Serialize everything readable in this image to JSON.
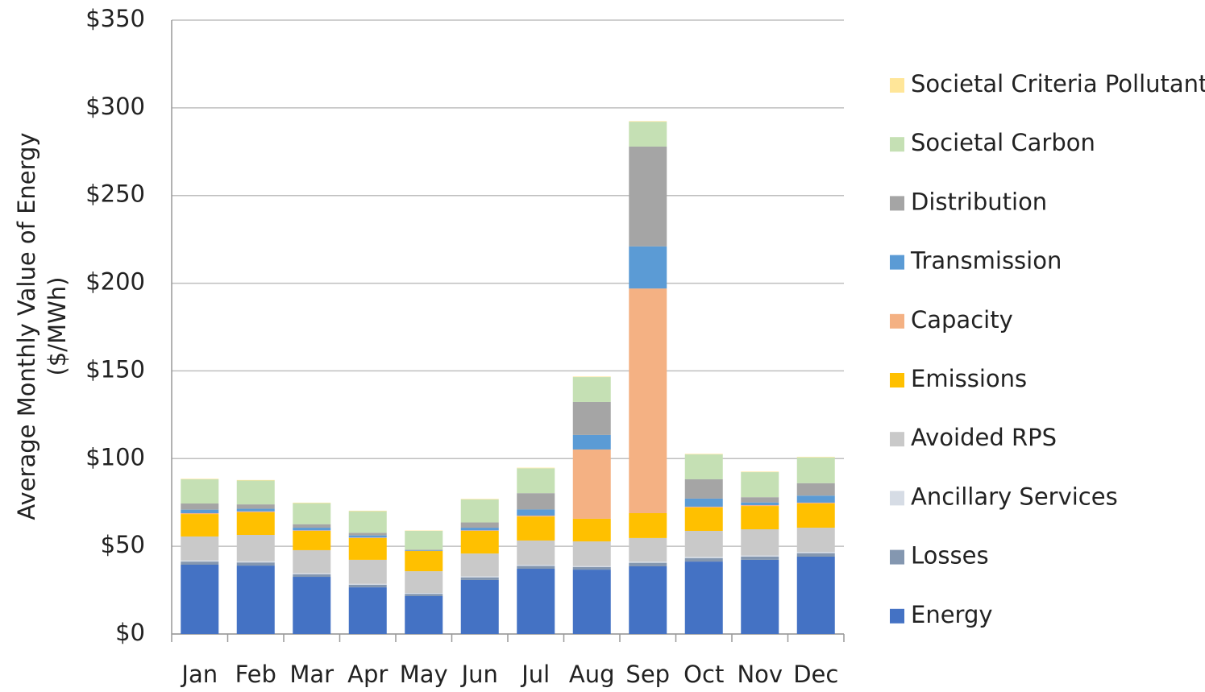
{
  "chart_data": {
    "type": "stacked_bar",
    "y_label": [
      "Average Monthly Value of Energy",
      "($/MWh)"
    ],
    "categories": [
      "Jan",
      "Feb",
      "Mar",
      "Apr",
      "May",
      "Jun",
      "Jul",
      "Aug",
      "Sep",
      "Oct",
      "Nov",
      "Dec"
    ],
    "series": [
      {
        "name": "Energy",
        "color": "#4472c4",
        "values": [
          39.5,
          39,
          32.6,
          26.6,
          21.6,
          30.8,
          37.2,
          36.7,
          38.6,
          41.3,
          42.3,
          44.1
        ]
      },
      {
        "name": "Losses",
        "color": "#8497b0",
        "values": [
          1.8,
          1.8,
          1.5,
          1.5,
          1.3,
          1.5,
          1.6,
          1.5,
          2,
          2,
          1.8,
          2
        ]
      },
      {
        "name": "Ancillary Services",
        "color": "#d6dce5",
        "values": [
          0.7,
          0.7,
          0.6,
          0.5,
          0.5,
          0.6,
          0.6,
          0.6,
          0.7,
          0.7,
          0.7,
          0.7
        ]
      },
      {
        "name": "Avoided RPS",
        "color": "#c9c9c9",
        "values": [
          13.6,
          15,
          13.1,
          13.7,
          12.4,
          13,
          13.9,
          14,
          13.4,
          14.8,
          14.9,
          13.8
        ]
      },
      {
        "name": "Emissions",
        "color": "#ffc000",
        "values": [
          12.8,
          12.9,
          11,
          12.4,
          11.5,
          12.9,
          13.7,
          12.9,
          14.2,
          13.3,
          13.3,
          13.8
        ]
      },
      {
        "name": "Capacity",
        "color": "#f4b183",
        "values": [
          0.5,
          0.5,
          0.3,
          0.3,
          0,
          0.3,
          0.5,
          39.5,
          128.1,
          0.5,
          0.5,
          0.5
        ]
      },
      {
        "name": "Transmission",
        "color": "#5b9bd5",
        "values": [
          2,
          1.5,
          1.5,
          1.2,
          0.3,
          1.5,
          3.5,
          8.3,
          24,
          4.6,
          1.5,
          4
        ]
      },
      {
        "name": "Distribution",
        "color": "#a5a5a5",
        "values": [
          3.5,
          2.5,
          2,
          1.5,
          0.5,
          3,
          9.3,
          18.8,
          56.9,
          11,
          3,
          7.1
        ]
      },
      {
        "name": "Societal Carbon",
        "color": "#c5e0b4",
        "values": [
          13.8,
          13.6,
          12,
          12.3,
          10.7,
          13.1,
          14.2,
          14.2,
          14.2,
          14.2,
          14.3,
          14.7
        ]
      },
      {
        "name": "Societal Criteria Pollutants",
        "color": "#ffe699",
        "values": [
          0.3,
          0.3,
          0.3,
          0.3,
          0.2,
          0.3,
          0.3,
          0.3,
          0.3,
          0.3,
          0.3,
          0.3
        ]
      }
    ],
    "ylim": [
      0,
      350
    ],
    "yticks": [
      {
        "value": 0,
        "label": "$0"
      },
      {
        "value": 50,
        "label": "$50"
      },
      {
        "value": 100,
        "label": "$100"
      },
      {
        "value": 150,
        "label": "$150"
      },
      {
        "value": 200,
        "label": "$200"
      },
      {
        "value": 250,
        "label": "$250"
      },
      {
        "value": 300,
        "label": "$300"
      },
      {
        "value": 350,
        "label": "$350"
      }
    ],
    "grid": true,
    "legend": "right"
  }
}
